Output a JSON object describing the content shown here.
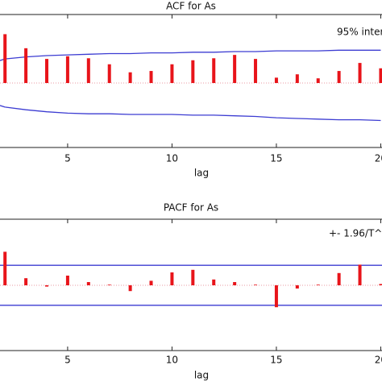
{
  "chart_data": [
    {
      "type": "acf",
      "title": "ACF for As",
      "x_label": "lag",
      "x": [
        2,
        3,
        4,
        5,
        6,
        7,
        8,
        9,
        10,
        11,
        12,
        13,
        14,
        15,
        16,
        17,
        18,
        19,
        20
      ],
      "values": [
        0.73,
        0.52,
        0.36,
        0.4,
        0.37,
        0.28,
        0.16,
        0.18,
        0.28,
        0.34,
        0.37,
        0.42,
        0.36,
        0.08,
        0.13,
        0.07,
        0.18,
        0.3,
        0.22
      ],
      "color": "#e8141a",
      "xlim": [
        1.76,
        20.06
      ],
      "xticks": [
        5,
        10,
        15,
        20
      ],
      "ylim": [
        -1,
        1
      ],
      "band": {
        "name": "95% inter",
        "color": "#3c3cd2",
        "upper": [
          0.36,
          0.39,
          0.41,
          0.42,
          0.43,
          0.44,
          0.44,
          0.45,
          0.45,
          0.46,
          0.46,
          0.47,
          0.47,
          0.48,
          0.48,
          0.48,
          0.49,
          0.49,
          0.49
        ],
        "lower": [
          -0.36,
          -0.4,
          -0.43,
          -0.45,
          -0.46,
          -0.46,
          -0.47,
          -0.47,
          -0.47,
          -0.48,
          -0.48,
          -0.49,
          -0.5,
          -0.52,
          -0.53,
          -0.54,
          -0.55,
          -0.55,
          -0.56
        ]
      }
    },
    {
      "type": "pacf",
      "title": "PACF for As",
      "x_label": "lag",
      "x": [
        2,
        3,
        4,
        5,
        6,
        7,
        8,
        9,
        10,
        11,
        12,
        13,
        14,
        15,
        16,
        17,
        18,
        19,
        20
      ],
      "values": [
        0.52,
        0.11,
        -0.02,
        0.15,
        0.05,
        0.01,
        -0.09,
        0.07,
        0.2,
        0.24,
        0.09,
        0.05,
        0.01,
        -0.34,
        -0.05,
        0.01,
        0.19,
        0.32,
        0.02
      ],
      "color": "#e8141a",
      "xlim": [
        1.76,
        20.06
      ],
      "xticks": [
        5,
        10,
        15,
        20
      ],
      "ylim": [
        -1,
        1
      ],
      "band": {
        "name": "+- 1.96/T^",
        "color": "#3c3cd2",
        "limits": [
          -0.31,
          0.31
        ]
      }
    }
  ]
}
